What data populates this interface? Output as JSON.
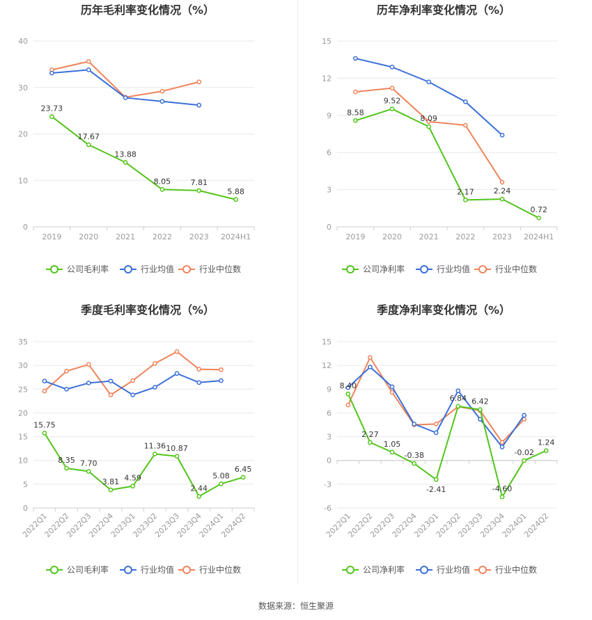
{
  "chart_data": [
    {
      "type": "line",
      "title": "历年毛利率变化情况（%）",
      "categories": [
        "2019",
        "2020",
        "2021",
        "2022",
        "2023",
        "2024H1"
      ],
      "ylim": [
        0,
        40
      ],
      "yticks": [
        0,
        10,
        20,
        30,
        40
      ],
      "tick_labels": [
        "0",
        "10",
        "20",
        "30",
        "40"
      ],
      "series": [
        {
          "name": "公司毛利率",
          "color": "#52c41a",
          "values": [
            23.73,
            17.67,
            13.88,
            8.05,
            7.81,
            5.88
          ],
          "labels": [
            "23.73",
            "17.67",
            "13.88",
            "8.05",
            "7.81",
            "5.88"
          ]
        },
        {
          "name": "行业均值",
          "color": "#3a6fd8",
          "values": [
            33.1,
            33.8,
            27.8,
            27.0,
            26.2,
            null
          ]
        },
        {
          "name": "行业中位数",
          "color": "#f0835a",
          "values": [
            33.8,
            35.6,
            27.9,
            29.2,
            31.2,
            null
          ]
        }
      ]
    },
    {
      "type": "line",
      "title": "历年净利率变化情况（%）",
      "categories": [
        "2019",
        "2020",
        "2021",
        "2022",
        "2023",
        "2024H1"
      ],
      "ylim": [
        0,
        15
      ],
      "yticks": [
        0,
        3,
        6,
        9,
        12,
        15
      ],
      "tick_labels": [
        "0",
        "3",
        "6",
        "9",
        "12",
        "15"
      ],
      "series": [
        {
          "name": "公司净利率",
          "color": "#52c41a",
          "values": [
            8.58,
            9.52,
            8.09,
            2.17,
            2.24,
            0.72
          ],
          "labels": [
            "8.58",
            "9.52",
            "8.09",
            "2.17",
            "2.24",
            "0.72"
          ]
        },
        {
          "name": "行业均值",
          "color": "#3a6fd8",
          "values": [
            13.6,
            12.9,
            11.7,
            10.1,
            7.4,
            null
          ]
        },
        {
          "name": "行业中位数",
          "color": "#f0835a",
          "values": [
            10.9,
            11.2,
            8.5,
            8.2,
            3.6,
            null
          ]
        }
      ]
    },
    {
      "type": "line",
      "title": "季度毛利率变化情况（%）",
      "categories": [
        "2022Q1",
        "2022Q2",
        "2022Q3",
        "2022Q4",
        "2023Q1",
        "2023Q2",
        "2023Q3",
        "2023Q4",
        "2024Q1",
        "2024Q2"
      ],
      "ylim": [
        0,
        35
      ],
      "yticks": [
        0,
        5,
        10,
        15,
        20,
        25,
        30,
        35
      ],
      "tick_labels": [
        "0",
        "5",
        "10",
        "15",
        "20",
        "25",
        "30",
        "35"
      ],
      "series": [
        {
          "name": "公司毛利率",
          "color": "#52c41a",
          "values": [
            15.75,
            8.35,
            7.7,
            3.81,
            4.59,
            11.36,
            10.87,
            2.44,
            5.08,
            6.45
          ],
          "labels": [
            "15.75",
            "8.35",
            "7.70",
            "3.81",
            "4.59",
            "11.36",
            "10.87",
            "2.44",
            "5.08",
            "6.45"
          ]
        },
        {
          "name": "行业均值",
          "color": "#3a6fd8",
          "values": [
            26.7,
            25.0,
            26.3,
            26.7,
            23.8,
            25.4,
            28.3,
            26.4,
            26.8,
            null
          ]
        },
        {
          "name": "行业中位数",
          "color": "#f0835a",
          "values": [
            24.6,
            28.8,
            30.2,
            23.8,
            26.8,
            30.4,
            32.9,
            29.2,
            29.1,
            null
          ]
        }
      ]
    },
    {
      "type": "line",
      "title": "季度净利率变化情况（%）",
      "categories": [
        "2022Q1",
        "2022Q2",
        "2022Q3",
        "2022Q4",
        "2023Q1",
        "2023Q2",
        "2023Q3",
        "2023Q4",
        "2024Q1",
        "2024Q2"
      ],
      "ylim": [
        -6,
        15
      ],
      "yticks": [
        -6,
        -3,
        0,
        3,
        6,
        9,
        12,
        15
      ],
      "tick_labels": [
        "-6",
        "-3",
        "0",
        "3",
        "6",
        "9",
        "12",
        "15"
      ],
      "series": [
        {
          "name": "公司净利率",
          "color": "#52c41a",
          "values": [
            8.4,
            2.27,
            1.05,
            -0.38,
            -2.41,
            6.84,
            6.42,
            -4.6,
            -0.02,
            1.24
          ],
          "labels": [
            "8.40",
            "2.27",
            "1.05",
            "-0.38",
            "-2.41",
            "6.84",
            "6.42",
            "-4.60",
            "-0.02",
            "1.24"
          ]
        },
        {
          "name": "行业均值",
          "color": "#3a6fd8",
          "values": [
            9.2,
            11.8,
            9.3,
            4.6,
            3.5,
            8.8,
            5.2,
            1.7,
            5.7,
            null
          ]
        },
        {
          "name": "行业中位数",
          "color": "#f0835a",
          "values": [
            7.0,
            13.0,
            8.6,
            4.5,
            4.6,
            6.8,
            6.3,
            2.3,
            5.2,
            null
          ]
        }
      ]
    }
  ],
  "source_text": "数据来源：恒生聚源"
}
